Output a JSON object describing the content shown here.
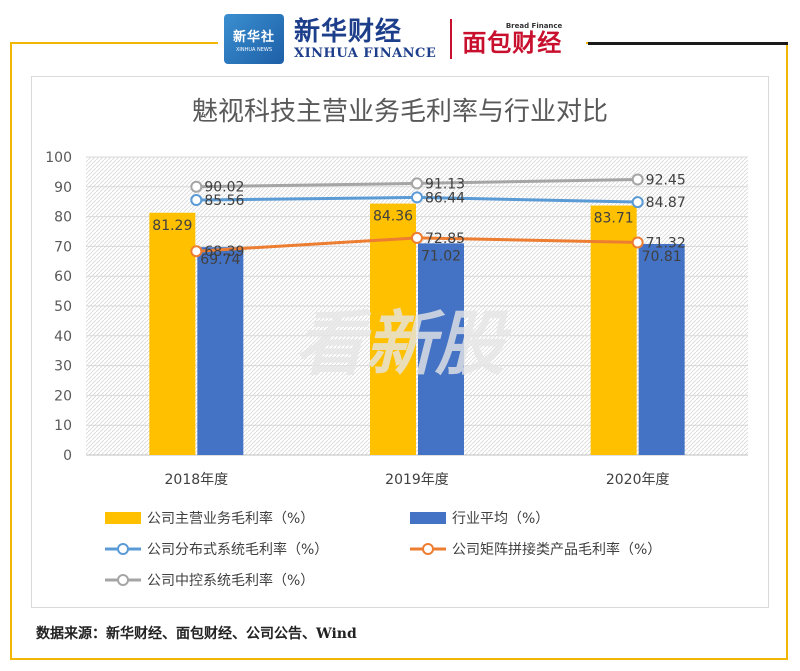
{
  "header": {
    "xinhua_logo_text": "新华社",
    "xinhua_logo_sub": "XINHUA NEWS",
    "brand_cn": "新华财经",
    "brand_en": "XINHUA FINANCE",
    "bread_en": "Bread Finance",
    "bread_cn": "面包财经"
  },
  "watermark": "看新股",
  "source_text": "数据来源：新华财经、面包财经、公司公告、Wind",
  "colors": {
    "bar_main": "#ffc000",
    "bar_industry": "#4472c4",
    "line_distributed": "#5b9bd5",
    "line_matrix": "#ed7d31",
    "line_central": "#a5a5a5",
    "frame": "#f2b705"
  },
  "chart_data": {
    "type": "bar",
    "title": "魅视科技主营业务毛利率与行业对比",
    "categories": [
      "2018年度",
      "2019年度",
      "2020年度"
    ],
    "ylim": [
      0,
      100
    ],
    "yticks": [
      0,
      10,
      20,
      30,
      40,
      50,
      60,
      70,
      80,
      90,
      100
    ],
    "grid": true,
    "legend_position": "bottom",
    "series": [
      {
        "name": "公司主营业务毛利率（%）",
        "kind": "bar",
        "values": [
          81.29,
          84.36,
          83.71
        ]
      },
      {
        "name": "行业平均（%）",
        "kind": "bar",
        "values": [
          69.74,
          71.02,
          70.81
        ]
      },
      {
        "name": "公司分布式系统毛利率（%）",
        "kind": "line",
        "values": [
          85.56,
          86.44,
          84.87
        ]
      },
      {
        "name": "公司矩阵拼接类产品毛利率（%）",
        "kind": "line",
        "values": [
          68.39,
          72.85,
          71.32
        ]
      },
      {
        "name": "公司中控系统毛利率（%）",
        "kind": "line",
        "values": [
          90.02,
          91.13,
          92.45
        ]
      }
    ]
  }
}
